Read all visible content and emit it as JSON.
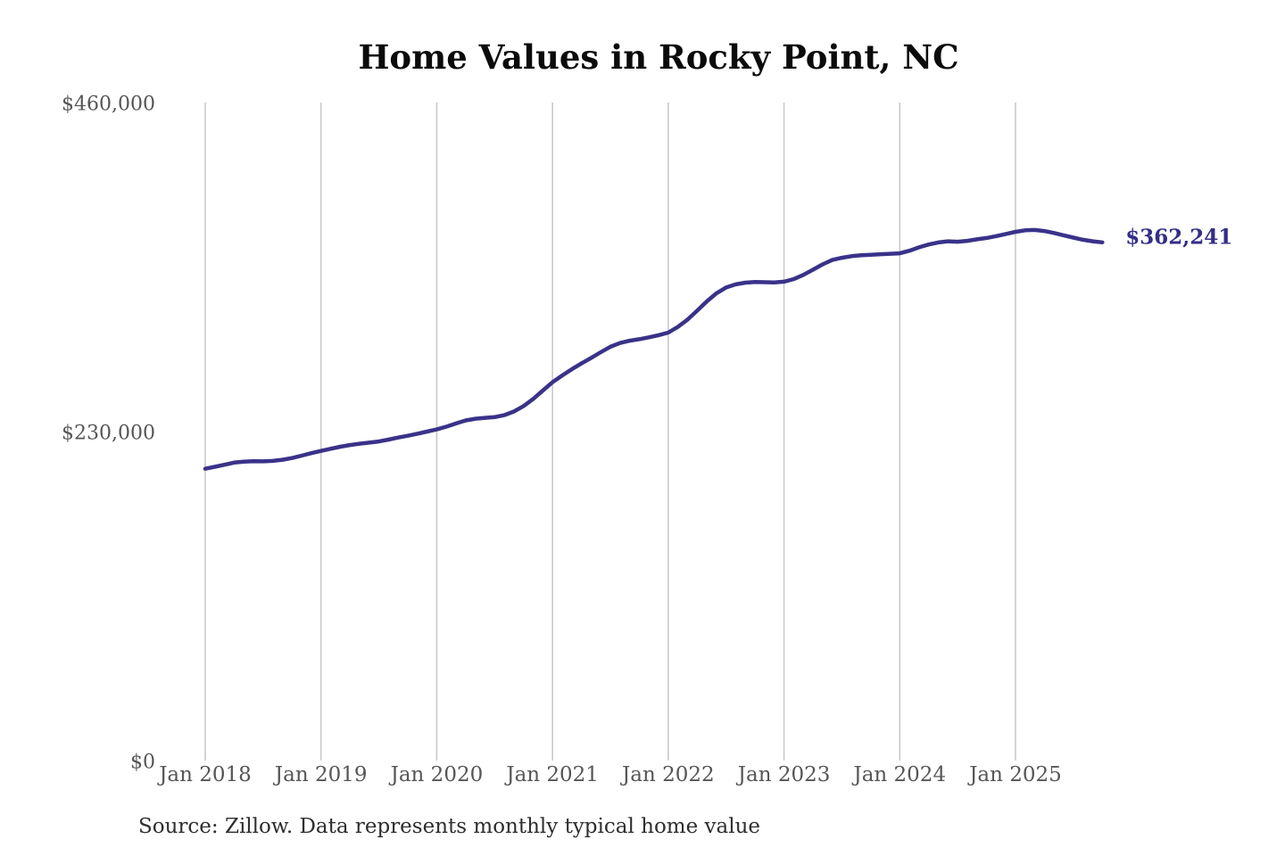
{
  "title": "Home Values in Rocky Point, NC",
  "source_note": "Source: Zillow. Data represents monthly typical home value",
  "colors": {
    "background": "#ffffff",
    "line": "#3a3289",
    "end_label": "#342e87",
    "gridline": "#c9c9c9",
    "axis_text": "#565656",
    "title_text": "#0b0b0b",
    "source_text": "#2e2e2e"
  },
  "chart_data": {
    "type": "line",
    "title": "Home Values in Rocky Point, NC",
    "series_name": "Typical home value",
    "start_month": "2018-01",
    "frequency": "monthly",
    "xlabel": "",
    "ylabel": "",
    "ylim": [
      0,
      460000
    ],
    "grid": "vertical",
    "legend": "none",
    "line_color": "#3a3289",
    "y_ticks": [
      {
        "value": 460000,
        "label": "$460,000"
      },
      {
        "value": 230000,
        "label": "$230,000"
      },
      {
        "value": 0,
        "label": "$0"
      }
    ],
    "x_ticks": [
      "Jan 2018",
      "Jan 2019",
      "Jan 2020",
      "Jan 2021",
      "Jan 2022",
      "Jan 2023",
      "Jan 2024",
      "Jan 2025"
    ],
    "values": [
      204000,
      205400,
      206800,
      208300,
      209000,
      209300,
      209200,
      209500,
      210300,
      211500,
      213200,
      214900,
      216500,
      218000,
      219400,
      220600,
      221500,
      222300,
      223100,
      224400,
      225800,
      227100,
      228500,
      230000,
      231500,
      233400,
      235700,
      237800,
      239000,
      239600,
      240100,
      241500,
      244000,
      247800,
      252800,
      258700,
      264500,
      269200,
      273600,
      277600,
      281500,
      285500,
      289300,
      291900,
      293500,
      294600,
      295900,
      297400,
      299200,
      303200,
      308300,
      314500,
      321000,
      326700,
      330700,
      332900,
      334100,
      334600,
      334400,
      334300,
      334800,
      336600,
      339500,
      343100,
      346900,
      349900,
      351500,
      352600,
      353200,
      353600,
      354000,
      354300,
      354600,
      356400,
      358800,
      360800,
      362200,
      363000,
      362700,
      363300,
      364400,
      365300,
      366600,
      368100,
      369600,
      370700,
      370900,
      370200,
      368800,
      367200,
      365600,
      364100,
      363000,
      362241
    ],
    "last_value": 362241,
    "last_value_label": "$362,241"
  }
}
